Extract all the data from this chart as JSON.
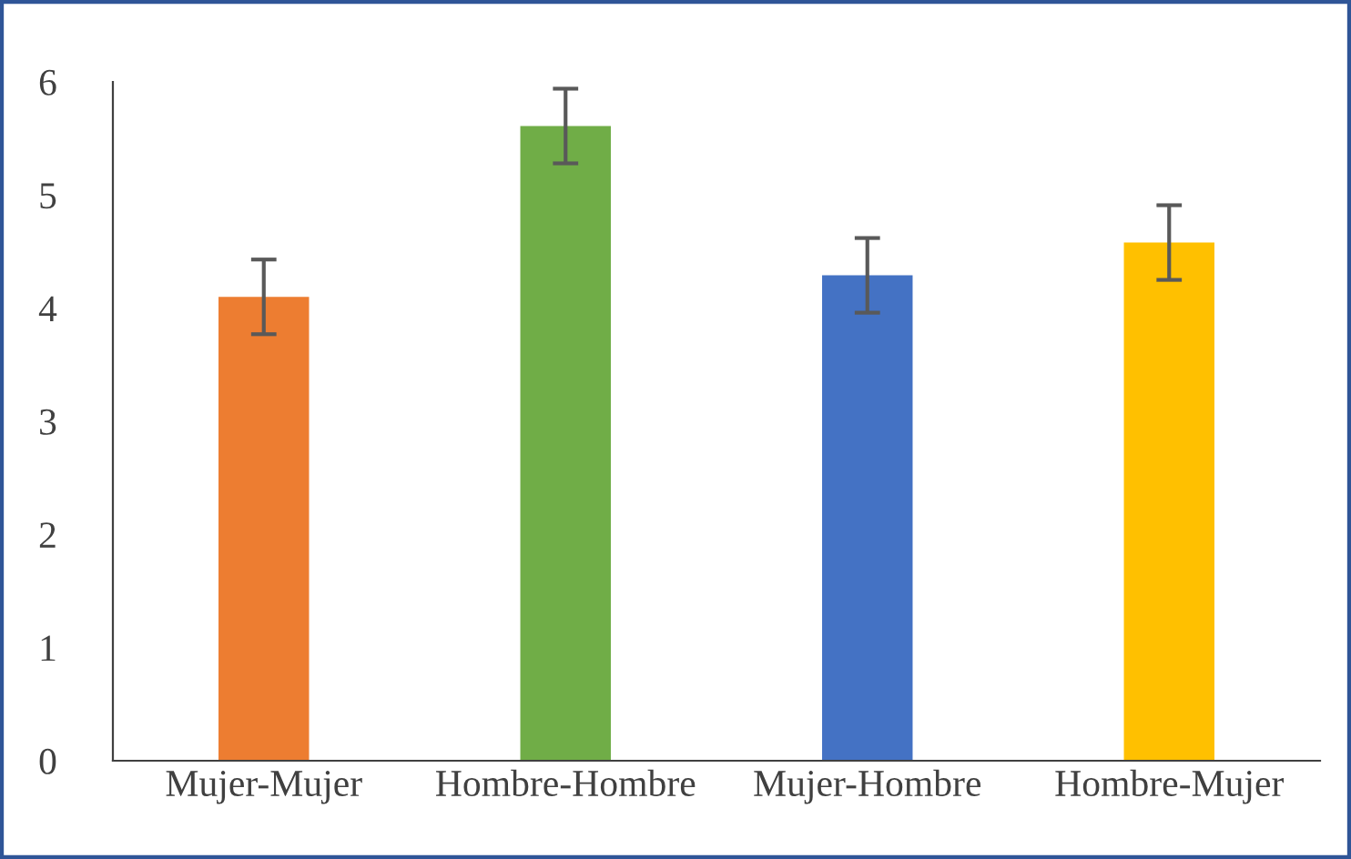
{
  "chart_data": {
    "type": "bar",
    "categories": [
      "Mujer-Mujer",
      "Hombre-Hombre",
      "Mujer-Hombre",
      "Hombre-Mujer"
    ],
    "values": [
      4.1,
      5.61,
      4.29,
      4.58
    ],
    "colors": [
      "#ed7d31",
      "#70ad47",
      "#4472c4",
      "#ffc000"
    ],
    "errors": [
      0.33,
      0.33,
      0.33,
      0.33
    ],
    "ylim": [
      0,
      6
    ],
    "yticks": [
      0,
      1,
      2,
      3,
      4,
      5,
      6
    ],
    "grid": false,
    "legend": false
  }
}
